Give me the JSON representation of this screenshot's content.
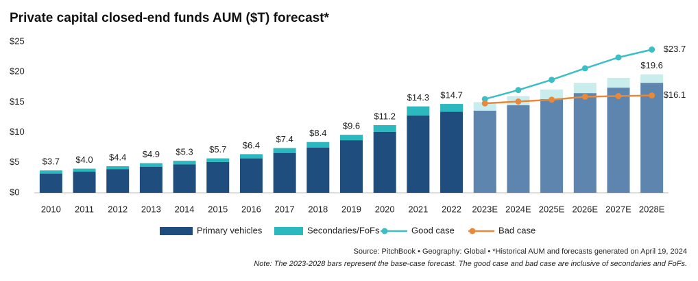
{
  "chart_data": {
    "type": "stacked-bar-line",
    "title": "Private capital closed-end funds AUM ($T) forecast*",
    "categories": [
      "2010",
      "2011",
      "2012",
      "2013",
      "2014",
      "2015",
      "2016",
      "2017",
      "2018",
      "2019",
      "2020",
      "2021",
      "2022",
      "2023E",
      "2024E",
      "2025E",
      "2026E",
      "2027E",
      "2028E"
    ],
    "series": [
      {
        "name": "Primary vehicles",
        "kind": "bar",
        "color": "#1f4e7e",
        "forecast_color": "#5d85ae",
        "values": [
          3.2,
          3.5,
          3.9,
          4.3,
          4.7,
          5.1,
          5.7,
          6.6,
          7.5,
          8.7,
          10.1,
          12.8,
          13.4,
          13.6,
          14.5,
          15.5,
          16.5,
          17.4,
          18.2
        ]
      },
      {
        "name": "Secondaries/FoFs",
        "kind": "bar",
        "color": "#2bb8be",
        "forecast_color": "#c9ecec",
        "values": [
          0.5,
          0.5,
          0.5,
          0.6,
          0.6,
          0.6,
          0.7,
          0.8,
          0.9,
          0.9,
          1.1,
          1.5,
          1.3,
          1.4,
          1.5,
          1.6,
          1.7,
          1.6,
          1.4
        ]
      },
      {
        "name": "Good case",
        "kind": "line",
        "color": "#3bbfc4",
        "values": [
          null,
          null,
          null,
          null,
          null,
          null,
          null,
          null,
          null,
          null,
          null,
          null,
          null,
          15.5,
          17.0,
          18.7,
          20.6,
          22.4,
          23.7
        ],
        "value_labels": [
          null,
          null,
          null,
          null,
          null,
          null,
          null,
          null,
          null,
          null,
          null,
          null,
          null,
          null,
          null,
          null,
          null,
          null,
          "$23.7"
        ]
      },
      {
        "name": "Bad case",
        "kind": "line",
        "color": "#e8883a",
        "values": [
          null,
          null,
          null,
          null,
          null,
          null,
          null,
          null,
          null,
          null,
          null,
          null,
          null,
          14.8,
          15.1,
          15.4,
          15.9,
          16.0,
          16.1
        ],
        "value_labels": [
          null,
          null,
          null,
          null,
          null,
          null,
          null,
          null,
          null,
          null,
          null,
          null,
          null,
          null,
          null,
          null,
          null,
          null,
          "$16.1"
        ]
      }
    ],
    "totals": [
      3.7,
      4.0,
      4.4,
      4.9,
      5.3,
      5.7,
      6.4,
      7.4,
      8.4,
      9.6,
      11.2,
      14.3,
      14.7,
      null,
      null,
      null,
      null,
      null,
      19.6
    ],
    "total_labels": [
      "$3.7",
      "$4.0",
      "$4.4",
      "$4.9",
      "$5.3",
      "$5.7",
      "$6.4",
      "$7.4",
      "$8.4",
      "$9.6",
      "$11.2",
      "$14.3",
      "$14.7",
      null,
      null,
      null,
      null,
      null,
      "$19.6"
    ],
    "ylim": [
      0,
      25
    ],
    "yticks": [
      {
        "value": 0,
        "label": "$0"
      },
      {
        "value": 5,
        "label": "$5"
      },
      {
        "value": 10,
        "label": "$10"
      },
      {
        "value": 15,
        "label": "$15"
      },
      {
        "value": 20,
        "label": "$20"
      },
      {
        "value": 25,
        "label": "$25"
      }
    ],
    "grid": false,
    "legend": "bottom",
    "source": "Source: PitchBook  •  Geography: Global  •  *Historical AUM and forecasts generated on April 19, 2024",
    "note": "Note: The 2023-2028 bars represent the base-case forecast. The good case and bad case are inclusive of secondaries and FoFs."
  }
}
